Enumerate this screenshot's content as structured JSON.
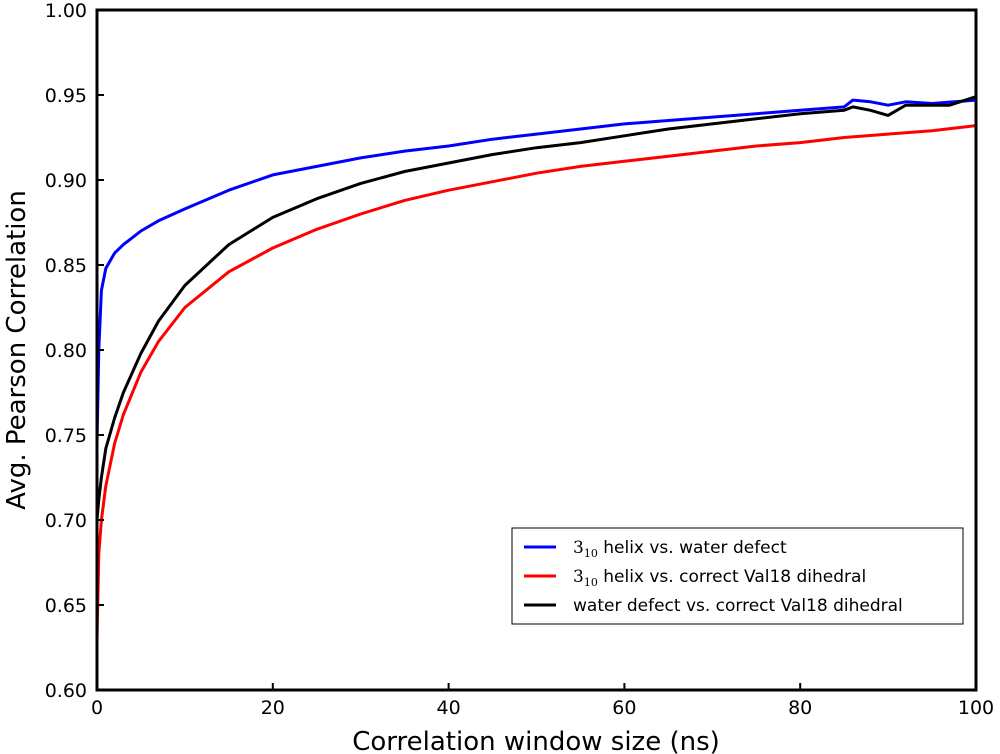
{
  "chart_data": {
    "type": "line",
    "title": "",
    "xlabel": "Correlation window size (ns)",
    "ylabel": "Avg. Pearson Correlation",
    "xlim": [
      0,
      100
    ],
    "ylim": [
      0.6,
      1.0
    ],
    "xticks": [
      0,
      20,
      40,
      60,
      80,
      100
    ],
    "yticks": [
      0.6,
      0.65,
      0.7,
      0.75,
      0.8,
      0.85,
      0.9,
      0.95,
      1.0
    ],
    "xtick_labels": [
      "0",
      "20",
      "40",
      "60",
      "80",
      "100"
    ],
    "ytick_labels": [
      "0.60",
      "0.65",
      "0.70",
      "0.75",
      "0.80",
      "0.85",
      "0.90",
      "0.95",
      "1.00"
    ],
    "grid": false,
    "legend_position": "lower-right",
    "series": [
      {
        "name": "3_10 helix vs. water defect",
        "legend_main": "3",
        "legend_sub": "10",
        "legend_rest": " helix vs. water defect",
        "color": "#0000ff",
        "x": [
          0,
          0.2,
          0.5,
          1,
          2,
          3,
          5,
          7,
          10,
          15,
          20,
          25,
          30,
          35,
          40,
          45,
          50,
          55,
          60,
          65,
          70,
          75,
          80,
          85,
          86,
          88,
          90,
          92,
          95,
          100
        ],
        "y": [
          0.745,
          0.8,
          0.835,
          0.848,
          0.857,
          0.862,
          0.87,
          0.876,
          0.883,
          0.894,
          0.903,
          0.908,
          0.913,
          0.917,
          0.92,
          0.924,
          0.927,
          0.93,
          0.933,
          0.935,
          0.937,
          0.939,
          0.941,
          0.943,
          0.947,
          0.946,
          0.944,
          0.946,
          0.945,
          0.947
        ]
      },
      {
        "name": "3_10 helix vs. correct Val18 dihedral",
        "legend_main": "3",
        "legend_sub": "10",
        "legend_rest": " helix vs. correct Val18 dihedral",
        "color": "#ff0000",
        "x": [
          0,
          0.2,
          0.5,
          1,
          2,
          3,
          5,
          7,
          10,
          15,
          20,
          25,
          30,
          35,
          40,
          45,
          50,
          55,
          60,
          65,
          70,
          75,
          80,
          85,
          90,
          95,
          100
        ],
        "y": [
          0.63,
          0.68,
          0.7,
          0.72,
          0.745,
          0.762,
          0.787,
          0.805,
          0.825,
          0.846,
          0.86,
          0.871,
          0.88,
          0.888,
          0.894,
          0.899,
          0.904,
          0.908,
          0.911,
          0.914,
          0.917,
          0.92,
          0.922,
          0.925,
          0.927,
          0.929,
          0.932
        ]
      },
      {
        "name": "water defect vs. correct Val18 dihedral",
        "legend_main": "water defect vs. correct Val18 dihedral",
        "legend_sub": "",
        "legend_rest": "",
        "color": "#000000",
        "x": [
          0,
          0.2,
          0.5,
          1,
          2,
          3,
          5,
          7,
          10,
          15,
          20,
          25,
          30,
          35,
          40,
          45,
          50,
          55,
          60,
          65,
          70,
          75,
          80,
          85,
          86,
          88,
          90,
          92,
          95,
          97,
          100
        ],
        "y": [
          0.7,
          0.712,
          0.725,
          0.742,
          0.76,
          0.775,
          0.798,
          0.817,
          0.838,
          0.862,
          0.878,
          0.889,
          0.898,
          0.905,
          0.91,
          0.915,
          0.919,
          0.922,
          0.926,
          0.93,
          0.933,
          0.936,
          0.939,
          0.941,
          0.943,
          0.941,
          0.938,
          0.944,
          0.944,
          0.944,
          0.949
        ]
      }
    ]
  }
}
